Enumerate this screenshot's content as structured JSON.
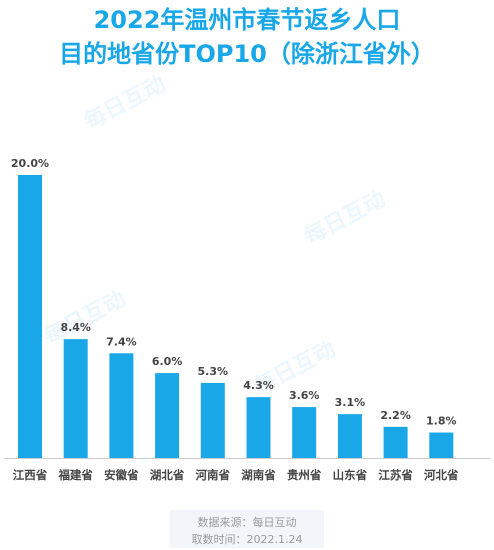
{
  "title_line1": "2022年温州市春节返乡人口",
  "title_line2": "目的地省份TOP10（除浙江省外）",
  "watermark": "每日互动",
  "source": "数据来源：每日互动",
  "date": "取数时间：2022.1.24",
  "bar_color": "#19a7e8",
  "chart_data": {
    "type": "bar",
    "categories": [
      "江西省",
      "福建省",
      "安徽省",
      "湖北省",
      "河南省",
      "湖南省",
      "贵州省",
      "山东省",
      "江苏省",
      "河北省"
    ],
    "values": [
      20.0,
      8.4,
      7.4,
      6.0,
      5.3,
      4.3,
      3.6,
      3.1,
      2.2,
      1.8
    ],
    "value_labels": [
      "20.0%",
      "8.4%",
      "7.4%",
      "6.0%",
      "5.3%",
      "4.3%",
      "3.6%",
      "3.1%",
      "2.2%",
      "1.8%"
    ],
    "unit": "%",
    "ylim": [
      0,
      20.0
    ],
    "grid": false,
    "legend": "none"
  }
}
